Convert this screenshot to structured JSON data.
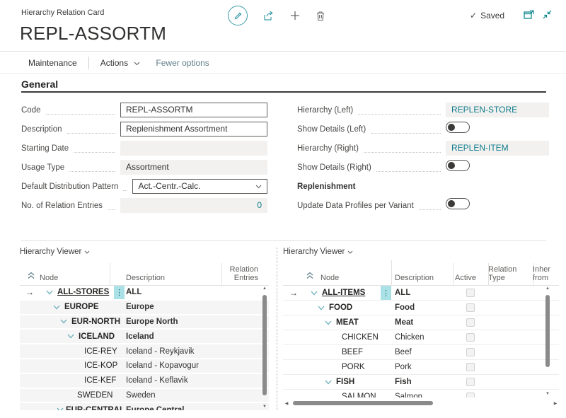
{
  "header": {
    "breadcrumb": "Hierarchy Relation Card",
    "title": "REPL-ASSORTM",
    "status": "Saved"
  },
  "actionbar": {
    "maintenance": "Maintenance",
    "actions": "Actions",
    "fewer_options": "Fewer options"
  },
  "general": {
    "heading": "General",
    "left_fields": [
      {
        "label": "Code",
        "value": "REPL-ASSORTM",
        "type": "input"
      },
      {
        "label": "Description",
        "value": "Replenishment Assortment",
        "type": "input"
      },
      {
        "label": "Starting Date",
        "value": "",
        "type": "disabled"
      },
      {
        "label": "Usage Type",
        "value": "Assortment",
        "type": "disabled"
      },
      {
        "label": "Default Distribution Pattern",
        "value": "Act.-Centr.-Calc.",
        "type": "select"
      },
      {
        "label": "No. of Relation Entries",
        "value": "0",
        "type": "link-disabled",
        "align": "right"
      }
    ],
    "right_fields": [
      {
        "label": "Hierarchy (Left)",
        "value": "REPLEN-STORE",
        "type": "link"
      },
      {
        "label": "Show Details (Left)",
        "type": "toggle",
        "state": "off"
      },
      {
        "label": "Hierarchy (Right)",
        "value": "REPLEN-ITEM",
        "type": "link"
      },
      {
        "label": "Show Details (Right)",
        "type": "toggle",
        "state": "off"
      },
      {
        "group": "Replenishment"
      },
      {
        "label": "Update Data Profiles per Variant",
        "type": "toggle",
        "state": "off"
      }
    ]
  },
  "viewers": {
    "left": {
      "caption": "Hierarchy Viewer",
      "columns": [
        "Node",
        "Description",
        "Relation Entries"
      ],
      "rows": [
        {
          "node": "ALL-STORES",
          "desc": "ALL",
          "level": 0,
          "expandable": true,
          "bold": true,
          "selected": true,
          "relation_entries": ""
        },
        {
          "node": "EUROPE",
          "desc": "Europe",
          "level": 1,
          "expandable": true,
          "bold": true,
          "relation_entries": ""
        },
        {
          "node": "EUR-NORTH",
          "desc": "Europe North",
          "level": 2,
          "expandable": true,
          "bold": true,
          "relation_entries": ""
        },
        {
          "node": "ICELAND",
          "desc": "Iceland",
          "level": 3,
          "expandable": true,
          "bold": true,
          "relation_entries": ""
        },
        {
          "node": "ICE-REY",
          "desc": "Iceland - Reykjavik",
          "level": 4,
          "relation_entries": ""
        },
        {
          "node": "ICE-KOP",
          "desc": "Iceland - Kopavogur",
          "level": 4,
          "relation_entries": ""
        },
        {
          "node": "ICE-KEF",
          "desc": "Iceland - Keflavik",
          "level": 4,
          "relation_entries": ""
        },
        {
          "node": "SWEDEN",
          "desc": "Sweden",
          "level": 3,
          "relation_entries": ""
        },
        {
          "node": "EUR-CENTRAL",
          "desc": "Europe Central",
          "level": 2,
          "expandable": true,
          "bold": true,
          "relation_entries": ""
        }
      ]
    },
    "right": {
      "caption": "Hierarchy Viewer",
      "columns": [
        "Node",
        "Description",
        "Active",
        "Relation Type",
        "Inher from"
      ],
      "rows": [
        {
          "node": "ALL-ITEMS",
          "desc": "ALL",
          "level": 0,
          "expandable": true,
          "bold": true,
          "selected": true,
          "active": false
        },
        {
          "node": "FOOD",
          "desc": "Food",
          "level": 1,
          "expandable": true,
          "bold": true,
          "active": false
        },
        {
          "node": "MEAT",
          "desc": "Meat",
          "level": 2,
          "expandable": true,
          "bold": true,
          "active": false
        },
        {
          "node": "CHICKEN",
          "desc": "Chicken",
          "level": 3,
          "active": false
        },
        {
          "node": "BEEF",
          "desc": "Beef",
          "level": 3,
          "active": false
        },
        {
          "node": "PORK",
          "desc": "Pork",
          "level": 3,
          "active": false
        },
        {
          "node": "FISH",
          "desc": "Fish",
          "level": 2,
          "expandable": true,
          "bold": true,
          "active": false
        },
        {
          "node": "SALMON",
          "desc": "Salmon",
          "level": 3,
          "active": false
        }
      ]
    }
  },
  "colors": {
    "accent_teal": "#008089",
    "link_teal": "#0e7c8a",
    "tree_chevron": "#68aebb",
    "selection_cell": "#a9e1e6",
    "disabled_field_bg": "#f2f1f0"
  }
}
